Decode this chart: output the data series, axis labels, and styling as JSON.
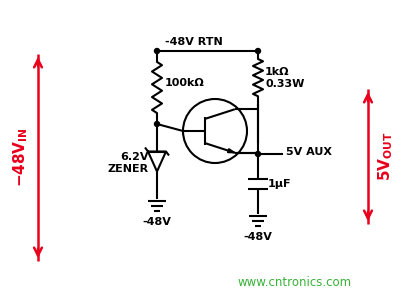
{
  "bg_color": "#ffffff",
  "line_color": "#000000",
  "red_color": "#e8001c",
  "green_color": "#22aa22",
  "watermark": "www.cntronics.com",
  "label_48v_rtn": "-48V RTN",
  "label_100k": "100kΩ",
  "label_1k": "1kΩ",
  "label_033w": "0.33W",
  "label_62v": "6.2V",
  "label_zener": "ZENER",
  "label_neg48a": "-48V",
  "label_5v_aux": "5V AUX",
  "label_1uf": "1μF",
  "label_neg48b": "-48V",
  "figsize": [
    4.0,
    2.99
  ],
  "dpi": 100
}
